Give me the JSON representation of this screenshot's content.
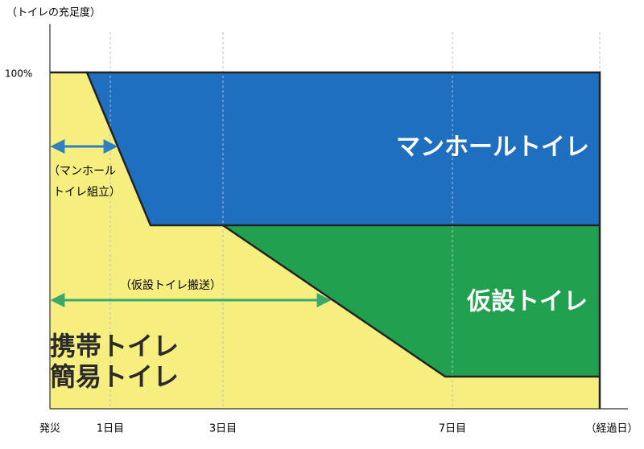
{
  "axis": {
    "y_label": "（トイレの充足度）",
    "y_top": "100%",
    "x_labels": [
      "発災",
      "1日目",
      "3日目",
      "7日目",
      "（経過日）"
    ]
  },
  "regions": {
    "manhole": "マンホールトイレ",
    "temporary": "仮設トイレ",
    "portable": [
      "携帯トイレ",
      "簡易トイレ"
    ]
  },
  "annotations": {
    "manhole_assembly": [
      "（マンホール",
      "トイレ組立）"
    ],
    "temporary_transport": "（仮設トイレ搬送）"
  }
}
